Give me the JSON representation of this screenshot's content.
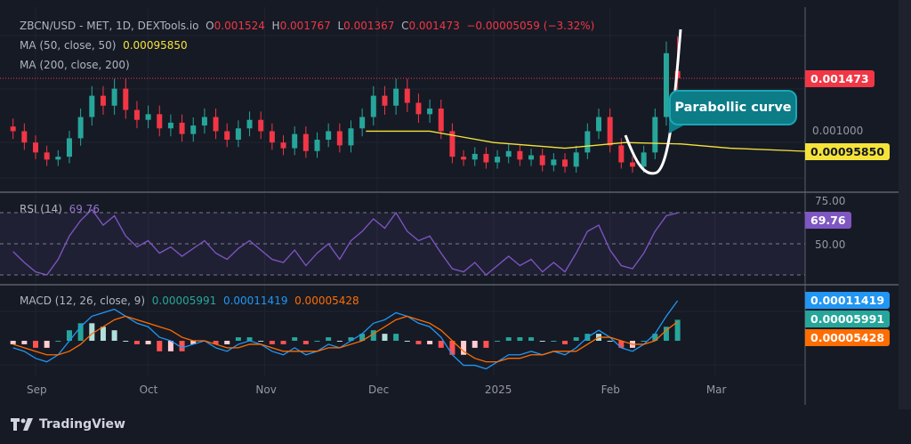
{
  "header": {
    "symbol": "ZBCN/USD - MET, 1D, DEXTools.io",
    "o_label": "O",
    "o": "0.001524",
    "h_label": "H",
    "h": "0.001767",
    "l_label": "L",
    "l": "0.001367",
    "c_label": "C",
    "c": "0.001473",
    "change": "−0.00005059 (−3.32%)"
  },
  "ma50": {
    "label": "MA (50, close, 50)",
    "value": "0.00095850"
  },
  "ma200": {
    "label": "MA (200, close, 200)"
  },
  "rsi": {
    "label": "RSI (14)",
    "value": "69.76"
  },
  "macd": {
    "label": "MACD (12, 26, close, 9)",
    "hist": "0.00005991",
    "macd": "0.00011419",
    "signal": "0.00005428"
  },
  "price_axis": {
    "last": "0.001473",
    "ma": "0.00095850",
    "hidden": "0.001000",
    "rsi_75": "75.00",
    "rsi_50": "50.00",
    "rsi_tag": "69.76",
    "macd_tag": "0.00011419",
    "hist_tag": "0.00005991",
    "signal_tag": "0.00005428"
  },
  "time_axis": [
    "Sep",
    "Oct",
    "Nov",
    "Dec",
    "2025",
    "Feb",
    "Mar"
  ],
  "annotation": {
    "text": "Parabollic curve"
  },
  "brand": "TradingView",
  "colors": {
    "up": "#26a69a",
    "down": "#f23645",
    "ma50": "#f5e33a",
    "rsi": "#7e57c2",
    "macd": "#2196f3",
    "signal": "#ff6d00",
    "callout": "#0c7c87"
  },
  "chart_data": {
    "type": "candlestick",
    "last_ohlc": {
      "open": 0.001524,
      "high": 0.001767,
      "low": 0.001367,
      "close": 0.001473
    },
    "dates": [
      "2024-08-26",
      "2024-08-29",
      "2024-09-01",
      "2024-09-04",
      "2024-09-07",
      "2024-09-10",
      "2024-09-13",
      "2024-09-16",
      "2024-09-19",
      "2024-09-22",
      "2024-09-25",
      "2024-09-28",
      "2024-10-01",
      "2024-10-04",
      "2024-10-07",
      "2024-10-10",
      "2024-10-13",
      "2024-10-16",
      "2024-10-19",
      "2024-10-22",
      "2024-10-25",
      "2024-10-28",
      "2024-10-31",
      "2024-11-03",
      "2024-11-06",
      "2024-11-09",
      "2024-11-12",
      "2024-11-15",
      "2024-11-18",
      "2024-11-21",
      "2024-11-24",
      "2024-11-27",
      "2024-11-30",
      "2024-12-03",
      "2024-12-06",
      "2024-12-09",
      "2024-12-12",
      "2024-12-15",
      "2024-12-18",
      "2024-12-21",
      "2024-12-24",
      "2024-12-27",
      "2024-12-30",
      "2025-01-02",
      "2025-01-05",
      "2025-01-08",
      "2025-01-11",
      "2025-01-14",
      "2025-01-17",
      "2025-01-20",
      "2025-01-23",
      "2025-01-26",
      "2025-01-29",
      "2025-02-01",
      "2025-02-04",
      "2025-02-07",
      "2025-02-10",
      "2025-02-13",
      "2025-02-16",
      "2025-02-19"
    ],
    "close": [
      0.0011,
      0.00102,
      0.00095,
      0.0009,
      0.00092,
      0.00105,
      0.0012,
      0.00135,
      0.00128,
      0.0014,
      0.00125,
      0.00118,
      0.00122,
      0.00112,
      0.00116,
      0.00108,
      0.00114,
      0.0012,
      0.0011,
      0.00104,
      0.00112,
      0.00118,
      0.0011,
      0.00102,
      0.00098,
      0.00108,
      0.00096,
      0.00104,
      0.0011,
      0.001,
      0.00112,
      0.0012,
      0.00135,
      0.00128,
      0.0014,
      0.0013,
      0.00122,
      0.00126,
      0.0011,
      0.00092,
      0.0009,
      0.00094,
      0.00088,
      0.00092,
      0.00096,
      0.0009,
      0.00093,
      0.00086,
      0.0009,
      0.00085,
      0.00095,
      0.0011,
      0.0012,
      0.001,
      0.00088,
      0.00085,
      0.00095,
      0.0012,
      0.00165,
      0.001473
    ],
    "ma50": {
      "dates": [
        "2024-11-28",
        "2024-12-15",
        "2025-01-01",
        "2025-01-20",
        "2025-02-05",
        "2025-02-20",
        "2025-03-05",
        "2025-03-25"
      ],
      "values": [
        0.0011,
        0.0011,
        0.00102,
        0.00098,
        0.00102,
        0.00101,
        0.00098,
        0.0009585
      ]
    },
    "rsi": [
      45,
      38,
      32,
      30,
      40,
      55,
      65,
      72,
      62,
      68,
      55,
      48,
      52,
      44,
      48,
      42,
      47,
      52,
      44,
      40,
      47,
      52,
      46,
      40,
      38,
      46,
      36,
      44,
      50,
      40,
      52,
      58,
      66,
      60,
      70,
      58,
      52,
      55,
      44,
      34,
      32,
      38,
      30,
      36,
      42,
      36,
      40,
      32,
      38,
      32,
      44,
      58,
      62,
      46,
      36,
      34,
      44,
      58,
      68,
      69.76
    ],
    "rsi_levels": [
      70,
      50,
      30
    ],
    "macd": [
      -2e-05,
      -3e-05,
      -5e-05,
      -6e-05,
      -4e-05,
      0,
      4e-05,
      7e-05,
      8e-05,
      9e-05,
      7e-05,
      5e-05,
      4e-05,
      1e-05,
      0,
      -2e-05,
      -1e-05,
      0,
      -2e-05,
      -3e-05,
      -1e-05,
      0,
      -1e-05,
      -3e-05,
      -4e-05,
      -2e-05,
      -4e-05,
      -3e-05,
      -1e-05,
      -2e-05,
      0,
      2e-05,
      5e-05,
      6e-05,
      8e-05,
      7e-05,
      5e-05,
      4e-05,
      1e-05,
      -4e-05,
      -7e-05,
      -7e-05,
      -8e-05,
      -6e-05,
      -4e-05,
      -4e-05,
      -3e-05,
      -4e-05,
      -3e-05,
      -4e-05,
      -2e-05,
      1e-05,
      3e-05,
      1e-05,
      -2e-05,
      -3e-05,
      -1e-05,
      2e-05,
      7e-05,
      0.00011419
    ],
    "signal": [
      -1e-05,
      -2e-05,
      -3e-05,
      -4e-05,
      -4e-05,
      -3e-05,
      -1e-05,
      2e-05,
      4e-05,
      6e-05,
      7e-05,
      6e-05,
      5e-05,
      4e-05,
      3e-05,
      1e-05,
      0,
      0,
      -1e-05,
      -2e-05,
      -2e-05,
      -1e-05,
      -1e-05,
      -2e-05,
      -3e-05,
      -3e-05,
      -3e-05,
      -3e-05,
      -2e-05,
      -2e-05,
      -1e-05,
      0,
      2e-05,
      4e-05,
      6e-05,
      7e-05,
      6e-05,
      5e-05,
      3e-05,
      0,
      -3e-05,
      -5e-05,
      -6e-05,
      -6e-05,
      -5e-05,
      -5e-05,
      -4e-05,
      -4e-05,
      -3e-05,
      -3e-05,
      -3e-05,
      -1e-05,
      1e-05,
      1e-05,
      0,
      -1e-05,
      -1e-05,
      0,
      3e-05,
      5.428e-05
    ]
  }
}
